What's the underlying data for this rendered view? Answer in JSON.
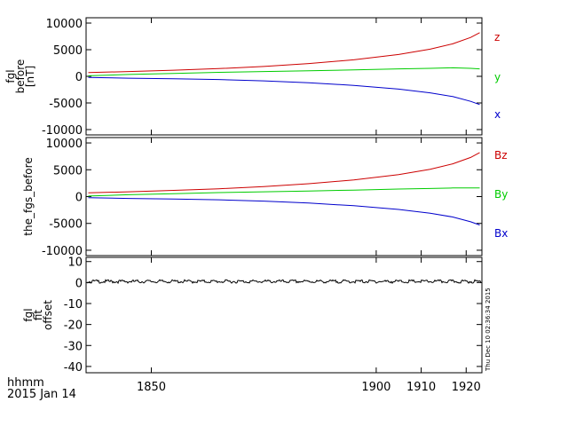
{
  "chart_data": [
    {
      "type": "line",
      "ylabel_lines": [
        "fgl",
        "before",
        "[nT]"
      ],
      "ylim": [
        -11000,
        11000
      ],
      "yticks": [
        10000,
        5000,
        0,
        -5000,
        -10000
      ],
      "yticklabels": [
        "10000",
        "5000",
        "0",
        "-5000",
        "-10000"
      ],
      "xlim": [
        1835.5,
        1923.5
      ],
      "x": [
        1836,
        1845,
        1855,
        1865,
        1875,
        1885,
        1895,
        1905,
        1912,
        1917,
        1921,
        1923
      ],
      "series": [
        {
          "name": "z",
          "color": "#cc0000",
          "values": [
            700,
            900,
            1150,
            1450,
            1850,
            2400,
            3100,
            4100,
            5100,
            6100,
            7300,
            8200
          ]
        },
        {
          "name": "y",
          "color": "#00cc00",
          "values": [
            100,
            350,
            550,
            750,
            900,
            1050,
            1200,
            1400,
            1500,
            1600,
            1500,
            1400
          ]
        },
        {
          "name": "x",
          "color": "#0000cc",
          "values": [
            -200,
            -350,
            -450,
            -600,
            -850,
            -1200,
            -1700,
            -2400,
            -3100,
            -3800,
            -4700,
            -5300
          ]
        }
      ]
    },
    {
      "type": "line",
      "ylabel_lines": [
        "the_fgs_before"
      ],
      "ylim": [
        -11000,
        11000
      ],
      "yticks": [
        10000,
        5000,
        0,
        -5000,
        -10000
      ],
      "yticklabels": [
        "10000",
        "5000",
        "0",
        "-5000",
        "-10000"
      ],
      "xlim": [
        1835.5,
        1923.5
      ],
      "x": [
        1836,
        1845,
        1855,
        1865,
        1875,
        1885,
        1895,
        1905,
        1912,
        1917,
        1921,
        1923
      ],
      "series": [
        {
          "name": "Bz",
          "color": "#cc0000",
          "values": [
            700,
            900,
            1150,
            1450,
            1850,
            2400,
            3100,
            4100,
            5100,
            6100,
            7300,
            8200
          ]
        },
        {
          "name": "By",
          "color": "#00cc00",
          "values": [
            100,
            350,
            550,
            750,
            900,
            1050,
            1200,
            1400,
            1500,
            1600,
            1600,
            1600
          ]
        },
        {
          "name": "Bx",
          "color": "#0000cc",
          "values": [
            -200,
            -350,
            -450,
            -600,
            -850,
            -1200,
            -1700,
            -2400,
            -3100,
            -3800,
            -4700,
            -5300
          ]
        }
      ]
    },
    {
      "type": "line",
      "ylabel_lines": [
        "fgl",
        "fit",
        "offset"
      ],
      "ylim": [
        -43,
        12
      ],
      "yticks": [
        10,
        0,
        -10,
        -20,
        -30,
        -40
      ],
      "yticklabels": [
        "10",
        "0",
        "-10",
        "-20",
        "-30",
        "-40"
      ],
      "xlim": [
        1835.5,
        1923.5
      ],
      "x": [
        1836,
        1923
      ],
      "series": [
        {
          "color": "#000000",
          "values": [
            0.5,
            0.5
          ]
        }
      ],
      "noise": "small jitter around 0"
    }
  ],
  "xaxis": {
    "ticks": [
      1850,
      1900,
      1910,
      1920
    ],
    "ticklabels": [
      "1850",
      "1900",
      "1910",
      "1920"
    ]
  },
  "footer": {
    "line1": "hhmm",
    "line2": "2015 Jan 14"
  },
  "timestamp": "Thu Dec 10 02:36:34 2015"
}
